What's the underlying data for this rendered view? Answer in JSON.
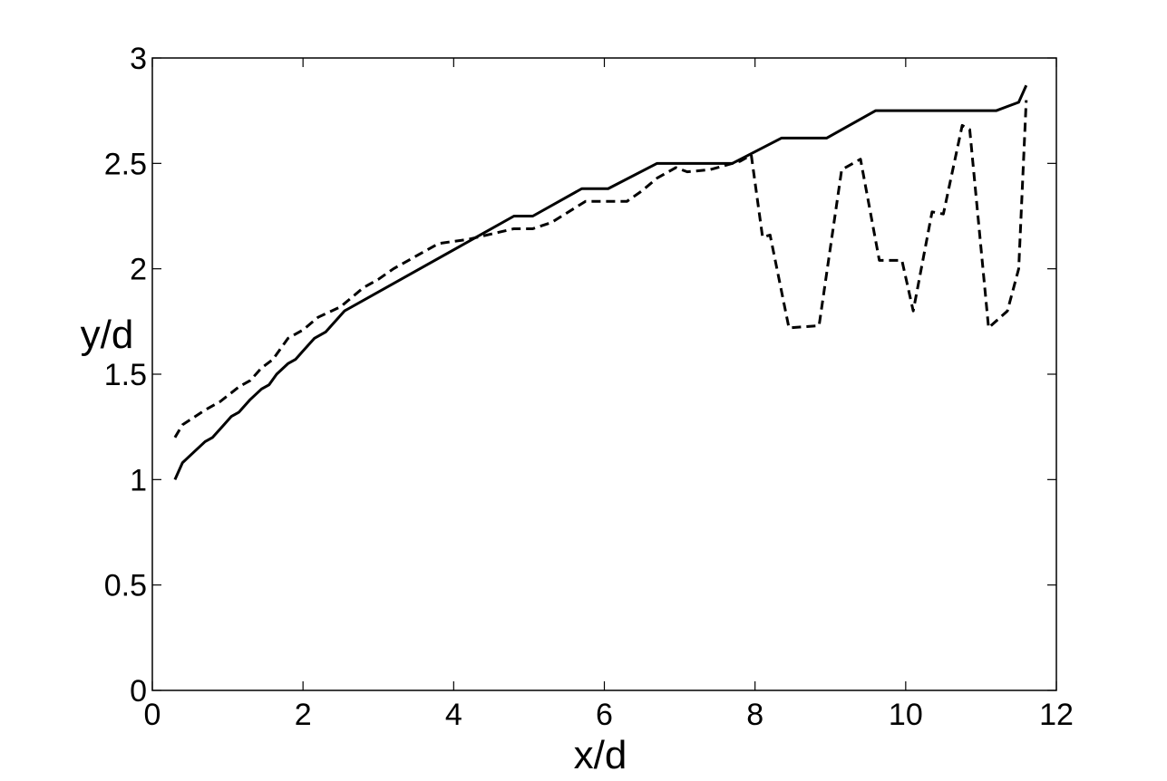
{
  "chart_data": {
    "type": "line",
    "x_label": "x/d",
    "y_label": "y/d",
    "xlim": [
      0,
      12
    ],
    "xticks": [
      0,
      2,
      4,
      6,
      8,
      10,
      12
    ],
    "ylim": [
      0,
      3
    ],
    "yticks": [
      0,
      0.5,
      1,
      1.5,
      2,
      2.5,
      3
    ],
    "series": [
      {
        "color": "#000000",
        "dash": "solid",
        "x": [
          0.3,
          0.4,
          0.55,
          0.7,
          0.8,
          0.95,
          1.05,
          1.15,
          1.3,
          1.45,
          1.55,
          1.65,
          1.8,
          1.9,
          2.0,
          2.15,
          2.3,
          2.55,
          4.8,
          5.05,
          5.7,
          6.05,
          6.7,
          7.7,
          8.35,
          8.95,
          9.6,
          11.2,
          11.35,
          11.5,
          11.6
        ],
        "values": [
          1.0,
          1.08,
          1.13,
          1.18,
          1.2,
          1.26,
          1.3,
          1.32,
          1.38,
          1.43,
          1.45,
          1.5,
          1.55,
          1.57,
          1.61,
          1.67,
          1.7,
          1.8,
          2.25,
          2.25,
          2.38,
          2.38,
          2.5,
          2.5,
          2.62,
          2.62,
          2.75,
          2.75,
          2.77,
          2.79,
          2.87
        ]
      },
      {
        "color": "#000000",
        "dash": "dashed",
        "x": [
          0.3,
          0.4,
          0.7,
          0.9,
          1.15,
          1.3,
          1.45,
          1.6,
          1.8,
          2.0,
          2.2,
          2.5,
          2.8,
          3.0,
          3.2,
          3.5,
          3.8,
          4.2,
          4.8,
          5.05,
          5.3,
          5.75,
          6.3,
          6.5,
          6.7,
          6.95,
          7.1,
          7.4,
          7.8,
          7.95,
          8.1,
          8.2,
          8.45,
          8.85,
          9.15,
          9.4,
          9.65,
          9.95,
          10.1,
          10.35,
          10.5,
          10.75,
          10.85,
          11.1,
          11.35,
          11.5,
          11.6
        ],
        "values": [
          1.2,
          1.26,
          1.33,
          1.37,
          1.44,
          1.47,
          1.53,
          1.57,
          1.67,
          1.71,
          1.77,
          1.82,
          1.91,
          1.95,
          2.0,
          2.06,
          2.12,
          2.14,
          2.19,
          2.19,
          2.22,
          2.32,
          2.32,
          2.37,
          2.43,
          2.48,
          2.46,
          2.47,
          2.51,
          2.54,
          2.15,
          2.16,
          1.72,
          1.73,
          2.47,
          2.52,
          2.04,
          2.04,
          1.8,
          2.27,
          2.26,
          2.68,
          2.66,
          1.72,
          1.8,
          2.0,
          2.8
        ]
      }
    ]
  }
}
